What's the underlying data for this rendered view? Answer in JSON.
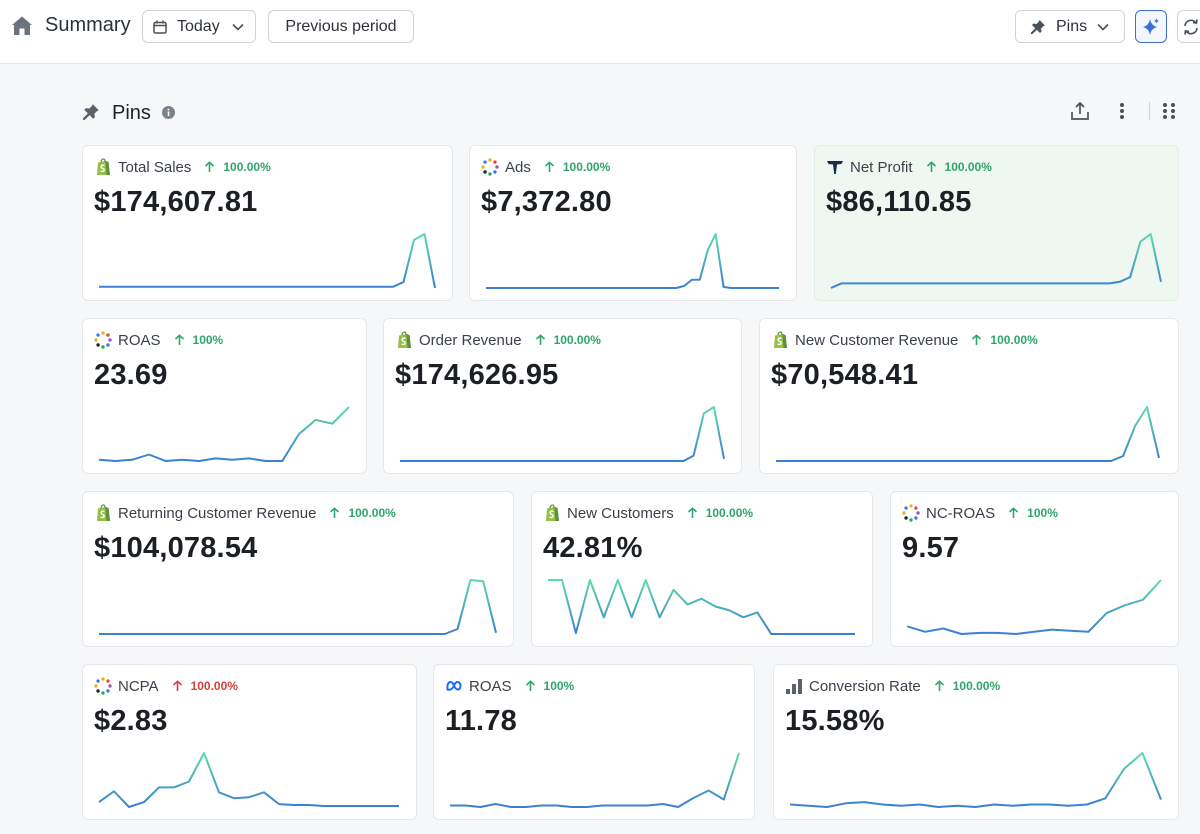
{
  "header": {
    "title": "Summary",
    "date_button": "Today",
    "compare_button": "Previous period",
    "pins_button": "Pins"
  },
  "section": {
    "title": "Pins"
  },
  "colors": {
    "positive": "#2fa56a",
    "negative": "#d6403b",
    "spark_start": "#3a7bd5",
    "spark_end": "#5fe3a1",
    "highlight_card": "#eef8f1"
  },
  "cards": [
    {
      "title": "Total Sales",
      "change": "100.00%",
      "trend": "up",
      "value": "$174,607.81",
      "source_icon": "shopify-icon",
      "spark": [
        4,
        4,
        4,
        4,
        4,
        4,
        4,
        4,
        4,
        4,
        4,
        4,
        4,
        4,
        4,
        4,
        4,
        4,
        4,
        4,
        4,
        4,
        4,
        4,
        4,
        4,
        4,
        4,
        4,
        8,
        44,
        49,
        3
      ]
    },
    {
      "title": "Ads",
      "change": "100.00%",
      "trend": "up",
      "value": "$7,372.80",
      "source_icon": "triple-whale-dots-icon",
      "spark": [
        3,
        3,
        3,
        3,
        3,
        3,
        3,
        3,
        3,
        3,
        3,
        3,
        3,
        3,
        3,
        3,
        3,
        3,
        3,
        3,
        3,
        3,
        3,
        3,
        3,
        5,
        11,
        11,
        40,
        56,
        4,
        3,
        3,
        3,
        3,
        3,
        3,
        3
      ]
    },
    {
      "title": "Net Profit",
      "change": "100.00%",
      "trend": "up",
      "value": "$86,110.85",
      "source_icon": "triple-whale-logo-icon",
      "spark": [
        0,
        3,
        3,
        3,
        3,
        3,
        3,
        3,
        3,
        3,
        3,
        3,
        3,
        3,
        3,
        3,
        3,
        3,
        3,
        3,
        3,
        3,
        3,
        3,
        3,
        3,
        3,
        3,
        4,
        7,
        30,
        35,
        4
      ]
    },
    {
      "title": "ROAS",
      "change": "100%",
      "trend": "up",
      "value": "23.69",
      "source_icon": "triple-whale-dots-icon",
      "spark": [
        4,
        3,
        4,
        8,
        3,
        4,
        3,
        5,
        4,
        5,
        3,
        3,
        24,
        35,
        32,
        45
      ]
    },
    {
      "title": "Order Revenue",
      "change": "100.00%",
      "trend": "up",
      "value": "$174,626.95",
      "source_icon": "shopify-icon",
      "spark": [
        3,
        3,
        3,
        3,
        3,
        3,
        3,
        3,
        3,
        3,
        3,
        3,
        3,
        3,
        3,
        3,
        3,
        3,
        3,
        3,
        3,
        3,
        3,
        3,
        3,
        3,
        3,
        3,
        3,
        8,
        47,
        53,
        5
      ]
    },
    {
      "title": "New Customer Revenue",
      "change": "100.00%",
      "trend": "up",
      "value": "$70,548.41",
      "source_icon": "shopify-icon",
      "spark": [
        3,
        3,
        3,
        3,
        3,
        3,
        3,
        3,
        3,
        3,
        3,
        3,
        3,
        3,
        3,
        3,
        3,
        3,
        3,
        3,
        3,
        3,
        3,
        3,
        3,
        3,
        3,
        3,
        3,
        8,
        38,
        57,
        6
      ]
    },
    {
      "title": "Returning Customer Revenue",
      "change": "100.00%",
      "trend": "up",
      "value": "$104,078.54",
      "source_icon": "shopify-icon",
      "spark": [
        3,
        3,
        3,
        3,
        3,
        3,
        3,
        3,
        3,
        3,
        3,
        3,
        3,
        3,
        3,
        3,
        3,
        3,
        3,
        3,
        3,
        3,
        3,
        3,
        3,
        3,
        3,
        3,
        7,
        46,
        45,
        4
      ]
    },
    {
      "title": "New Customers",
      "change": "100.00%",
      "trend": "up",
      "value": "42.81%",
      "source_icon": "shopify-icon",
      "spark": [
        58,
        58,
        4,
        58,
        20,
        58,
        20,
        58,
        20,
        48,
        33,
        39,
        31,
        27,
        20,
        25,
        3,
        3,
        3,
        3,
        3,
        3,
        3
      ]
    },
    {
      "title": "NC-ROAS",
      "change": "100%",
      "trend": "up",
      "value": "9.57",
      "source_icon": "triple-whale-dots-icon",
      "spark": [
        9,
        4,
        7,
        2,
        3,
        3,
        2,
        4,
        6,
        5,
        4,
        21,
        28,
        33,
        51
      ]
    },
    {
      "title": "NCPA",
      "change": "100.00%",
      "trend": "down",
      "value": "$2.83",
      "source_icon": "triple-whale-dots-icon",
      "spark": [
        6,
        17,
        1,
        6,
        21,
        21,
        27,
        56,
        16,
        10,
        11,
        16,
        4,
        3,
        3,
        2,
        2,
        2,
        2,
        2,
        2
      ]
    },
    {
      "title": "ROAS",
      "change": "100%",
      "trend": "up",
      "value": "11.78",
      "source_icon": "meta-icon",
      "spark": [
        3,
        3,
        2,
        4,
        2,
        2,
        3,
        3,
        2,
        2,
        3,
        3,
        3,
        3,
        4,
        2,
        8,
        13,
        7,
        38
      ]
    },
    {
      "title": "Conversion Rate",
      "change": "100.00%",
      "trend": "up",
      "value": "15.58%",
      "source_icon": "bar-chart-icon",
      "spark": [
        4,
        3,
        2,
        5,
        6,
        4,
        3,
        4,
        2,
        3,
        2,
        4,
        3,
        4,
        4,
        3,
        4,
        9,
        33,
        46,
        8
      ]
    }
  ]
}
